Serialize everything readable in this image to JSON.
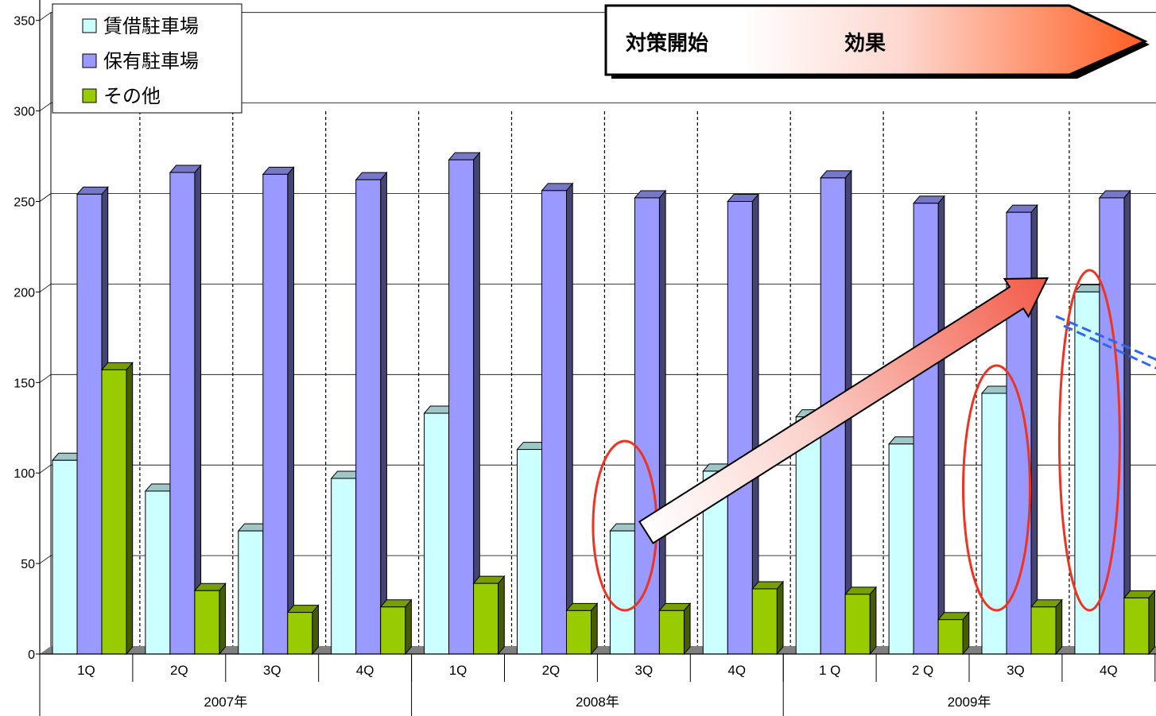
{
  "chart_data": {
    "type": "bar",
    "title": "",
    "xlabel": "",
    "ylabel": "",
    "ylim": [
      0,
      350
    ],
    "yticks": [
      0,
      50,
      100,
      150,
      200,
      250,
      300,
      350
    ],
    "grid": true,
    "legend_position": "top-left",
    "categories": [
      "1Q",
      "2Q",
      "3Q",
      "4Q",
      "1Q",
      "2Q",
      "3Q",
      "4Q",
      "1 Q",
      "2 Q",
      "3Q",
      "4Q"
    ],
    "year_groups": [
      {
        "label": "2007年",
        "span": 4
      },
      {
        "label": "2008年",
        "span": 4
      },
      {
        "label": "2009年",
        "span": 4
      }
    ],
    "series": [
      {
        "name": "賃借駐車場",
        "color": "#ccffff",
        "values": [
          107,
          90,
          68,
          97,
          133,
          113,
          68,
          101,
          131,
          116,
          144,
          200
        ]
      },
      {
        "name": "保有駐車場",
        "color": "#9999ff",
        "values": [
          254,
          266,
          265,
          262,
          273,
          256,
          252,
          250,
          263,
          249,
          244,
          252
        ]
      },
      {
        "name": "その他",
        "color": "#99cc00",
        "values": [
          157,
          35,
          23,
          26,
          39,
          24,
          24,
          36,
          33,
          19,
          26,
          31
        ]
      }
    ],
    "annotations": {
      "banner": {
        "start_label": "対策開始",
        "effect_label": "効果"
      },
      "highlight_circles": [
        "2008年 3Q 賃借駐車場",
        "2009年 3Q 賃借駐車場",
        "2009年 4Q 賃借駐車場"
      ],
      "trend_arrow": "2008年 3Q → 2009年 4Q (賃借駐車場)"
    }
  }
}
